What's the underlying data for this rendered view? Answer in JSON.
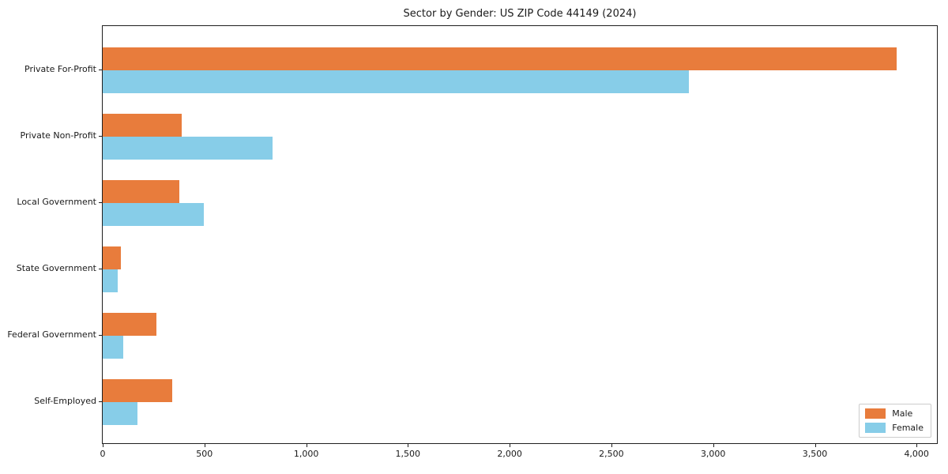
{
  "chart_data": {
    "type": "bar",
    "orientation": "horizontal",
    "title": "Sector by Gender: US ZIP Code 44149 (2024)",
    "categories": [
      "Private For-Profit",
      "Private Non-Profit",
      "Local Government",
      "State Government",
      "Federal Government",
      "Self-Employed"
    ],
    "series": [
      {
        "name": "Male",
        "color": "#E87C3C",
        "values": [
          3900,
          390,
          375,
          90,
          265,
          340
        ]
      },
      {
        "name": "Female",
        "color": "#87CDE8",
        "values": [
          2880,
          835,
          495,
          75,
          100,
          170
        ]
      }
    ],
    "xlim": [
      0,
      4100
    ],
    "x_ticks": [
      {
        "value": 0,
        "label": "0"
      },
      {
        "value": 500,
        "label": "500"
      },
      {
        "value": 1000,
        "label": "1,000"
      },
      {
        "value": 1500,
        "label": "1,500"
      },
      {
        "value": 2000,
        "label": "2,000"
      },
      {
        "value": 2500,
        "label": "2,500"
      },
      {
        "value": 3000,
        "label": "3,000"
      },
      {
        "value": 3500,
        "label": "3,500"
      },
      {
        "value": 4000,
        "label": "4,000"
      }
    ],
    "grid": false,
    "legend_position": "lower right"
  }
}
